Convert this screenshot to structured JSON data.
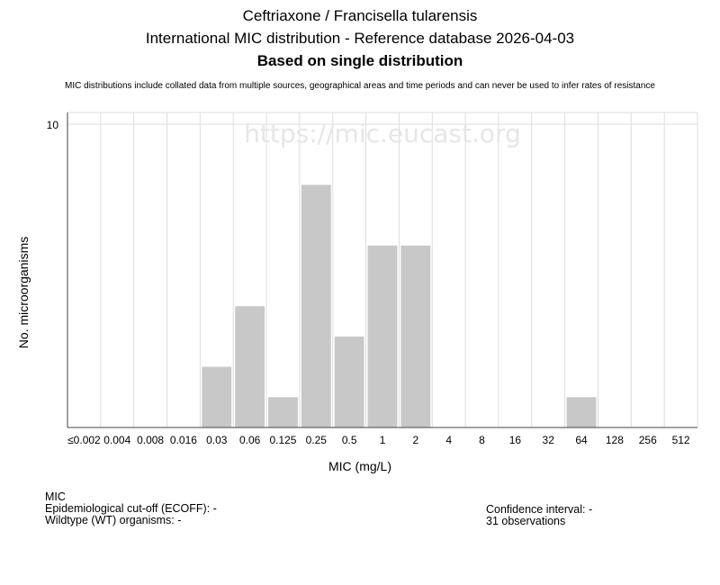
{
  "header": {
    "title_line1": "Ceftriaxone / Francisella tularensis",
    "title_line2": "International MIC distribution - Reference database 2026-04-03",
    "title_line3": "Based on single distribution",
    "disclaimer": "MIC distributions include collated data from multiple sources, geographical areas and time periods and can never be used to infer rates of resistance"
  },
  "chart_data": {
    "type": "bar",
    "categories": [
      "≤0.002",
      "0.004",
      "0.008",
      "0.016",
      "0.03",
      "0.06",
      "0.125",
      "0.25",
      "0.5",
      "1",
      "2",
      "4",
      "8",
      "16",
      "32",
      "64",
      "128",
      "256",
      "512"
    ],
    "values": [
      0,
      0,
      0,
      0,
      2,
      4,
      1,
      8,
      3,
      6,
      6,
      0,
      0,
      0,
      0,
      1,
      0,
      0,
      0
    ],
    "xlabel": "MIC (mg/L)",
    "ylabel": "No. microorganisms",
    "ylim": [
      0,
      10
    ],
    "yticks": [
      10
    ],
    "watermark": "https://mic.eucast.org",
    "grid": true,
    "bar_color": "#c8c8c8"
  },
  "info": {
    "mic_label": "MIC",
    "ecoff": "Epidemiological cut-off (ECOFF): -",
    "wildtype": "Wildtype (WT) organisms:  -",
    "confidence": "Confidence interval: -",
    "observations": "31 observations"
  }
}
